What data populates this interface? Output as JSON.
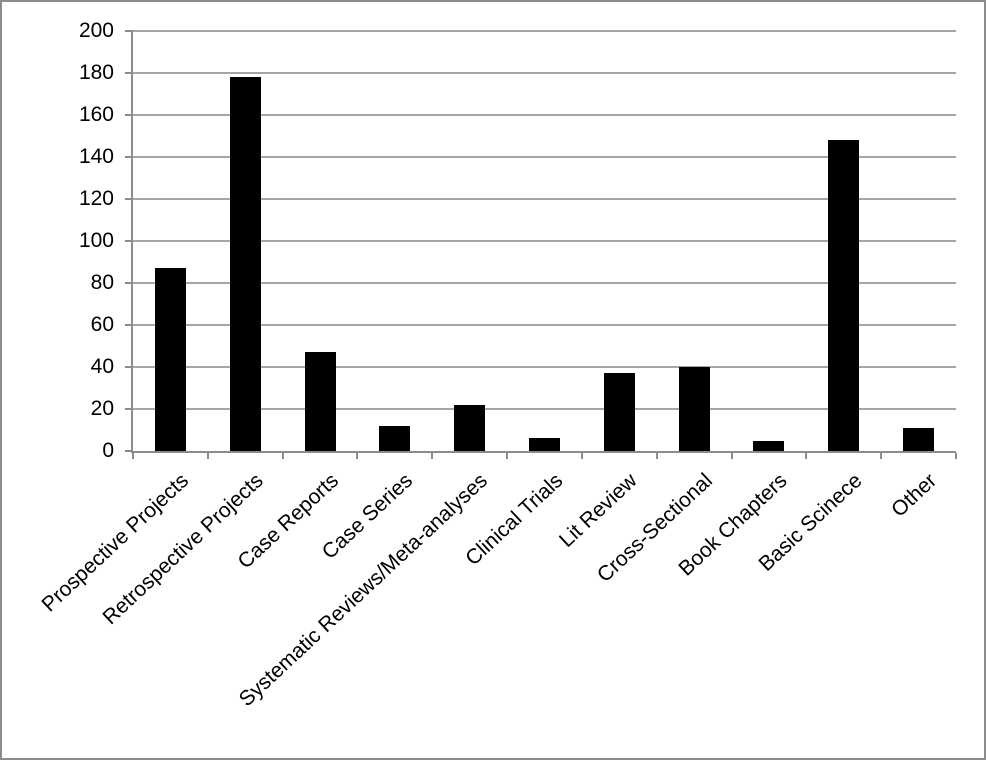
{
  "chart_data": {
    "type": "bar",
    "title": "",
    "xlabel": "",
    "ylabel": "",
    "categories": [
      "Prospective Projects",
      "Retrospective Projects",
      "Case Reports",
      "Case Series",
      "Systematic Reviews/Meta-analyses",
      "Clinical Trials",
      "Lit Review",
      "Cross-Sectional",
      "Book Chapters",
      "Basic Scinece",
      "Other"
    ],
    "values": [
      87,
      178,
      47,
      12,
      22,
      6,
      37,
      40,
      5,
      148,
      11
    ],
    "ylim": [
      0,
      200
    ],
    "ytick_step": 20,
    "ytick_labels": [
      "0",
      "20",
      "40",
      "60",
      "80",
      "100",
      "120",
      "140",
      "160",
      "180",
      "200"
    ],
    "grid": true,
    "legend": "none",
    "colors": {
      "bar": "#000000",
      "gridline": "#a6a6a6",
      "axis": "#8c8c8c",
      "text": "#000000",
      "background": "#ffffff",
      "frame_border": "#8c8c8c"
    }
  }
}
